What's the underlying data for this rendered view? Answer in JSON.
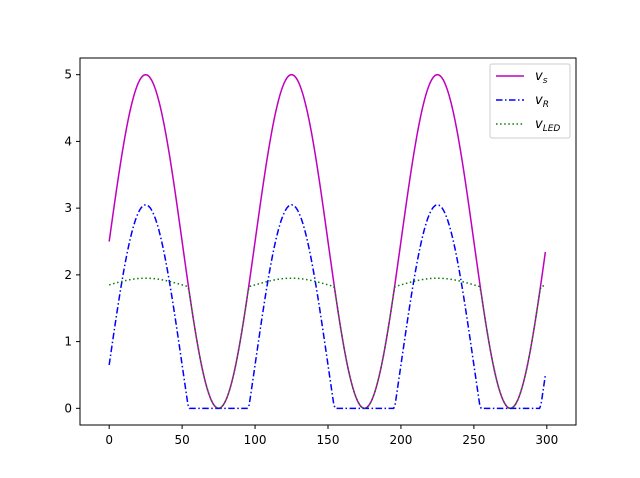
{
  "chart_data": {
    "type": "line",
    "title": "",
    "xlabel": "",
    "ylabel": "",
    "xlim": [
      -20,
      320
    ],
    "ylim": [
      -0.25,
      5.25
    ],
    "x_ticks": [
      0,
      50,
      100,
      150,
      200,
      250,
      300
    ],
    "y_ticks": [
      0,
      1,
      2,
      3,
      4,
      5
    ],
    "grid": false,
    "legend_position": "top-right",
    "x_start": 0,
    "x_end": 299,
    "x_step": 1,
    "series": [
      {
        "name": "v_s",
        "legend_main": "v",
        "legend_sub": "s",
        "color": "#bf00bf",
        "line_style": "solid",
        "description": "2.5 + 2.5*sin(2*pi*x/100)",
        "values_sampled": [
          {
            "x": 0,
            "y": 2.5
          },
          {
            "x": 25,
            "y": 5.0
          },
          {
            "x": 50,
            "y": 2.5
          },
          {
            "x": 75,
            "y": 0.0
          },
          {
            "x": 100,
            "y": 2.5
          },
          {
            "x": 125,
            "y": 5.0
          },
          {
            "x": 150,
            "y": 2.5
          },
          {
            "x": 175,
            "y": 0.0
          },
          {
            "x": 200,
            "y": 2.5
          },
          {
            "x": 225,
            "y": 5.0
          },
          {
            "x": 250,
            "y": 2.5
          },
          {
            "x": 275,
            "y": 0.0
          },
          {
            "x": 299,
            "y": 2.35
          }
        ]
      },
      {
        "name": "v_R",
        "legend_main": "v",
        "legend_sub": "R",
        "color": "#0000ff",
        "line_style": "dashdot",
        "description": "v_s - v_LED",
        "values_sampled": [
          {
            "x": 0,
            "y": 0.65
          },
          {
            "x": 25,
            "y": 3.05
          },
          {
            "x": 50,
            "y": 0.65
          },
          {
            "x": 57,
            "y": 0.0
          },
          {
            "x": 93,
            "y": 0.0
          },
          {
            "x": 100,
            "y": 0.65
          },
          {
            "x": 125,
            "y": 3.05
          },
          {
            "x": 150,
            "y": 0.65
          },
          {
            "x": 157,
            "y": 0.0
          },
          {
            "x": 193,
            "y": 0.0
          },
          {
            "x": 225,
            "y": 3.05
          },
          {
            "x": 257,
            "y": 0.0
          },
          {
            "x": 293,
            "y": 0.0
          },
          {
            "x": 299,
            "y": 0.5
          }
        ]
      },
      {
        "name": "v_LED",
        "legend_main": "v",
        "legend_sub": "LED",
        "color": "#008000",
        "line_style": "dotted",
        "description": "min(v_s, 1.85 + 0.1*sin(2*pi*x/100))",
        "values_sampled": [
          {
            "x": 0,
            "y": 1.85
          },
          {
            "x": 25,
            "y": 1.95
          },
          {
            "x": 55,
            "y": 1.8
          },
          {
            "x": 75,
            "y": 0.0
          },
          {
            "x": 95,
            "y": 1.8
          },
          {
            "x": 125,
            "y": 1.95
          },
          {
            "x": 155,
            "y": 1.8
          },
          {
            "x": 175,
            "y": 0.0
          },
          {
            "x": 195,
            "y": 1.8
          },
          {
            "x": 225,
            "y": 1.95
          },
          {
            "x": 255,
            "y": 1.8
          },
          {
            "x": 275,
            "y": 0.0
          },
          {
            "x": 299,
            "y": 1.8
          }
        ]
      }
    ]
  }
}
